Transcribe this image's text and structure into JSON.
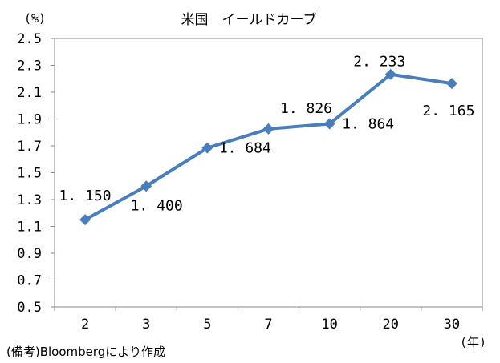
{
  "chart_data": {
    "type": "line",
    "title": "米国　イールドカーブ",
    "y_unit": "(%)",
    "x_unit": "(年)",
    "source": "(備考)Bloombergにより作成",
    "categories": [
      "2",
      "3",
      "5",
      "7",
      "10",
      "20",
      "30"
    ],
    "series": [
      {
        "values": [
          1.15,
          1.4,
          1.684,
          1.826,
          1.864,
          2.233,
          2.165
        ],
        "labels": [
          "1.150",
          "1.400",
          "1.684",
          "1.826",
          "1.864",
          "2.233",
          "2.165"
        ],
        "color": "#4a7ebb",
        "marker": "diamond"
      }
    ],
    "ylim": [
      0.5,
      2.5
    ],
    "yticks": [
      "0.5",
      "0.7",
      "0.9",
      "1.1",
      "1.3",
      "1.5",
      "1.7",
      "1.9",
      "2.1",
      "2.3",
      "2.5"
    ],
    "grid": false,
    "legend": "none"
  }
}
